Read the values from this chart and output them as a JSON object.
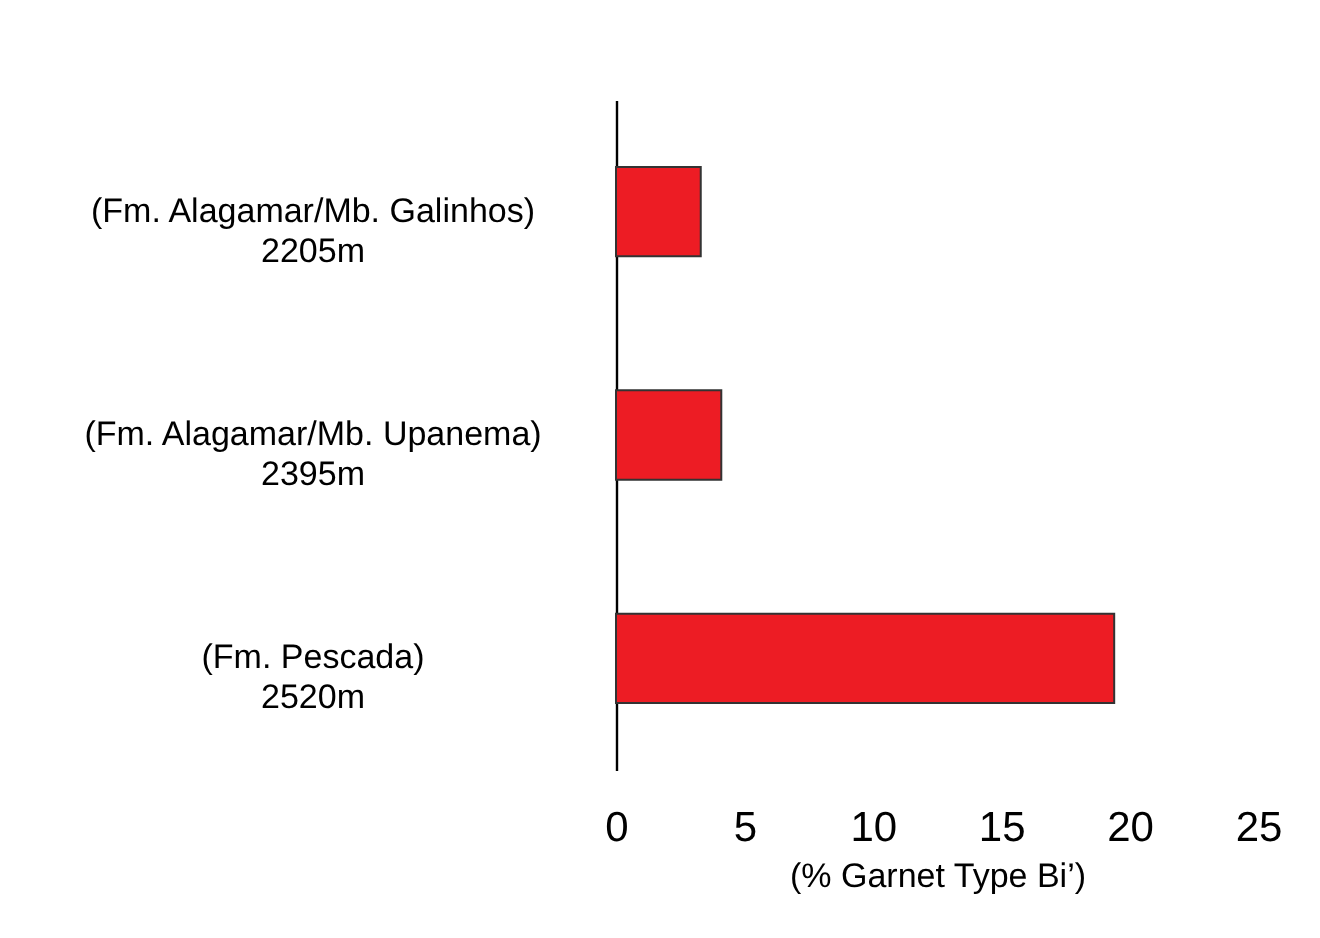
{
  "chart_data": {
    "type": "bar",
    "orientation": "horizontal",
    "xlabel": "(% Garnet Type Bi’)",
    "categories": [
      "(Fm. Alagamar/Mb. Galinhos)\n2205m",
      "(Fm. Alagamar/Mb. Upanema)\n2395m",
      "(Fm. Pescada)\n2520m"
    ],
    "values": [
      3.3,
      4.1,
      19.4
    ],
    "color": "#ed1c24",
    "xlim": [
      0,
      25
    ],
    "xticks": [
      0,
      5,
      10,
      15,
      20,
      25
    ],
    "grid": false
  }
}
